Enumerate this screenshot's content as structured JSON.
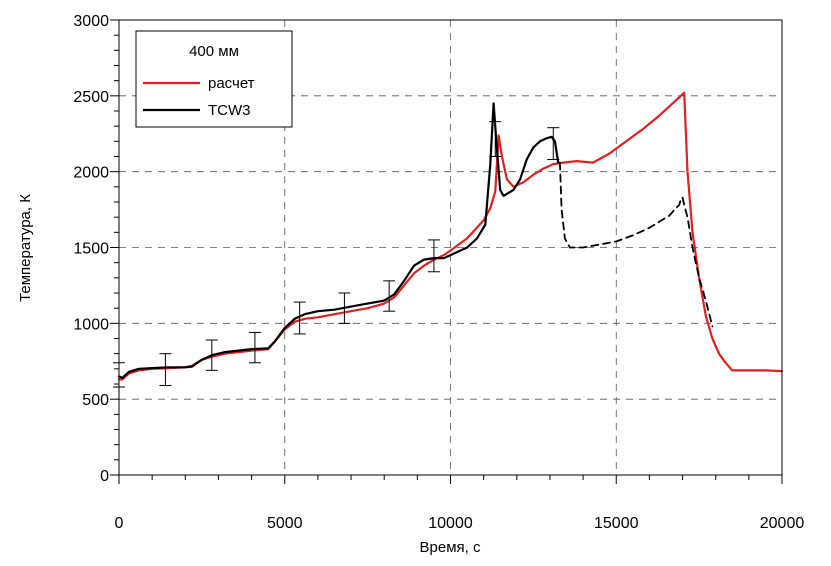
{
  "chart_data": {
    "type": "line",
    "title": "",
    "xlabel": "Время, с",
    "ylabel": "Температура, К",
    "xlim": [
      0,
      20000
    ],
    "ylim": [
      0,
      3000
    ],
    "x_ticks": [
      0,
      5000,
      10000,
      15000,
      20000
    ],
    "y_ticks": [
      0,
      500,
      1000,
      1500,
      2000,
      2500,
      3000
    ],
    "x_tick_labels": [
      "0",
      "5000",
      "10000",
      "15000",
      "20000"
    ],
    "y_tick_labels": [
      "0",
      "500",
      "1000",
      "1500",
      "2000",
      "2500",
      "3000"
    ],
    "grid": "dashed at major ticks",
    "legend": {
      "position": "top-left",
      "title": "400 мм",
      "entries": [
        "расчет",
        "TCW3"
      ]
    },
    "series": [
      {
        "name": "расчет",
        "color": "#e02020",
        "style": "solid",
        "x": [
          0,
          100,
          300,
          600,
          1000,
          1500,
          2000,
          2200,
          2500,
          2800,
          3200,
          3600,
          4000,
          4500,
          4700,
          5000,
          5300,
          5600,
          6000,
          6500,
          7000,
          7500,
          8000,
          8300,
          8600,
          8900,
          9200,
          9500,
          9800,
          10000,
          10500,
          11000,
          11200,
          11350,
          11450,
          11550,
          11700,
          11900,
          12200,
          12500,
          12800,
          13100,
          13400,
          13800,
          14300,
          14800,
          15300,
          15800,
          16300,
          16700,
          16950,
          17050,
          17150,
          17300,
          17500,
          17700,
          17900,
          18100,
          18300,
          18500,
          18700,
          19000,
          19500,
          20000
        ],
        "y": [
          630,
          630,
          670,
          690,
          700,
          705,
          710,
          720,
          760,
          780,
          800,
          810,
          820,
          830,
          880,
          960,
          1010,
          1030,
          1040,
          1060,
          1080,
          1100,
          1130,
          1170,
          1250,
          1330,
          1380,
          1420,
          1450,
          1480,
          1560,
          1680,
          1760,
          1870,
          2240,
          2100,
          1950,
          1900,
          1930,
          1980,
          2020,
          2050,
          2060,
          2070,
          2060,
          2120,
          2200,
          2280,
          2370,
          2450,
          2500,
          2520,
          2000,
          1600,
          1300,
          1050,
          900,
          800,
          740,
          690,
          690,
          690,
          690,
          685
        ]
      },
      {
        "name": "TCW3",
        "color": "#000000",
        "style": "solid",
        "x": [
          0,
          100,
          300,
          600,
          1000,
          1500,
          2000,
          2200,
          2500,
          2800,
          3200,
          3600,
          4000,
          4500,
          4700,
          5000,
          5300,
          5600,
          6000,
          6500,
          7000,
          7500,
          8000,
          8300,
          8600,
          8900,
          9200,
          9500,
          9800,
          10000,
          10500,
          10800,
          11050,
          11200,
          11300,
          11400,
          11500,
          11600,
          11750,
          11900,
          12100,
          12300,
          12500,
          12700,
          12900,
          13050,
          13150,
          13250
        ],
        "y": [
          650,
          640,
          680,
          700,
          705,
          710,
          710,
          715,
          760,
          790,
          810,
          820,
          830,
          835,
          880,
          970,
          1030,
          1060,
          1080,
          1090,
          1110,
          1130,
          1150,
          1190,
          1280,
          1380,
          1420,
          1430,
          1430,
          1450,
          1500,
          1560,
          1650,
          2050,
          2450,
          2150,
          1880,
          1840,
          1860,
          1880,
          1950,
          2080,
          2160,
          2200,
          2220,
          2230,
          2200,
          2060
        ]
      },
      {
        "name": "",
        "color": "#000000",
        "style": "dashed",
        "x": [
          13300,
          13350,
          13450,
          13600,
          14000,
          14500,
          15000,
          15500,
          16000,
          16300,
          16600,
          16800,
          16900,
          16950,
          17000,
          17050,
          17150,
          17300,
          17500,
          17700,
          17900
        ],
        "y": [
          2060,
          1750,
          1560,
          1500,
          1500,
          1520,
          1540,
          1580,
          1630,
          1670,
          1710,
          1760,
          1780,
          1820,
          1830,
          1780,
          1700,
          1500,
          1300,
          1150,
          980
        ]
      }
    ],
    "error_bars": {
      "x": [
        0,
        1400,
        2800,
        4100,
        5450,
        6800,
        8150,
        9500,
        11350,
        13100
      ],
      "low": [
        580,
        590,
        690,
        740,
        930,
        1000,
        1080,
        1340,
        2100,
        2080
      ],
      "high": [
        740,
        800,
        890,
        940,
        1140,
        1200,
        1280,
        1550,
        2330,
        2290
      ]
    }
  }
}
